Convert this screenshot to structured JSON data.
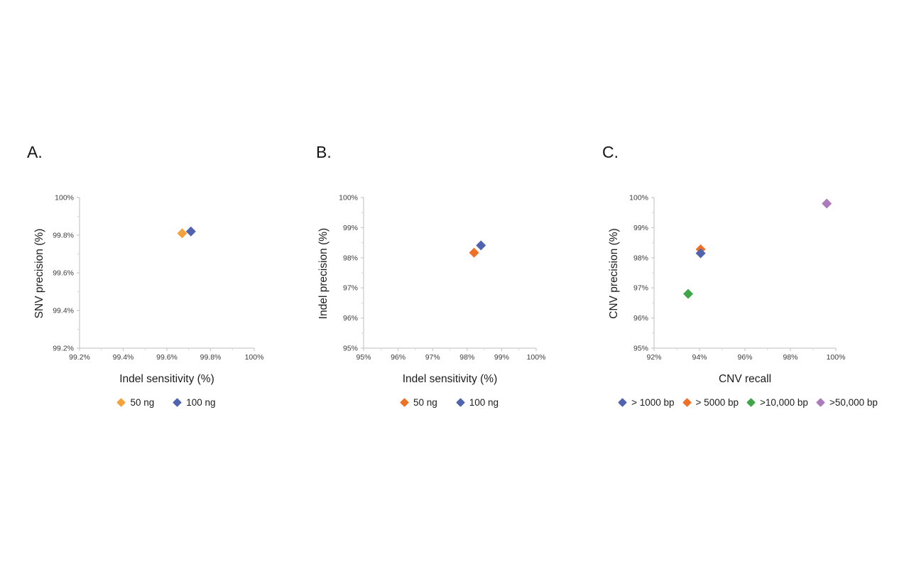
{
  "page": {
    "background": "#ffffff"
  },
  "chart_data": [
    {
      "type": "scatter",
      "panel_label": "A.",
      "xlabel": "Indel sensitivity (%)",
      "ylabel": "SNV precision (%)",
      "xlim": [
        99.2,
        100
      ],
      "xtick_step": 0.2,
      "xminor_step": 0.1,
      "ylim": [
        99.2,
        100
      ],
      "ytick_step": 0.2,
      "yminor_step": 0.1,
      "xtick_labels": [
        "99.2%",
        "99.4%",
        "99.6%",
        "99.8%",
        "100%"
      ],
      "ytick_labels": [
        "99.2%",
        "99.4%",
        "99.6%",
        "99.8%",
        "100%"
      ],
      "grid": false,
      "legend_position": "bottom",
      "draw_order": [
        0,
        1
      ],
      "series": [
        {
          "name": "50 ng",
          "color": "#F5A13C",
          "points": [
            [
              99.67,
              99.81
            ]
          ]
        },
        {
          "name": "100 ng",
          "color": "#4F63AE",
          "points": [
            [
              99.71,
              99.82
            ]
          ]
        }
      ]
    },
    {
      "type": "scatter",
      "panel_label": "B.",
      "xlabel": "Indel sensitivity (%)",
      "ylabel": "Indel precision (%)",
      "xlim": [
        95,
        100
      ],
      "xtick_step": 1,
      "xminor_step": 0.5,
      "ylim": [
        95,
        100
      ],
      "ytick_step": 1,
      "yminor_step": 0.5,
      "xtick_labels": [
        "95%",
        "96%",
        "97%",
        "98%",
        "99%",
        "100%"
      ],
      "ytick_labels": [
        "95%",
        "96%",
        "97%",
        "98%",
        "99%",
        "100%"
      ],
      "grid": false,
      "legend_position": "bottom",
      "draw_order": [
        0,
        1
      ],
      "series": [
        {
          "name": "50 ng",
          "color": "#EE7125",
          "points": [
            [
              98.2,
              98.17
            ]
          ]
        },
        {
          "name": "100 ng",
          "color": "#4F63AE",
          "points": [
            [
              98.4,
              98.41
            ]
          ]
        }
      ]
    },
    {
      "type": "scatter",
      "panel_label": "C.",
      "xlabel": "CNV recall",
      "ylabel": "CNV precision (%)",
      "xlim": [
        92,
        100
      ],
      "xtick_step": 2,
      "xminor_step": 1,
      "ylim": [
        95,
        100
      ],
      "ytick_step": 1,
      "yminor_step": 0.5,
      "xtick_labels": [
        "92%",
        "94%",
        "96%",
        "98%",
        "100%"
      ],
      "ytick_labels": [
        "95%",
        "96%",
        "97%",
        "98%",
        "99%",
        "100%"
      ],
      "grid": false,
      "legend_position": "bottom",
      "draw_order": [
        1,
        0,
        2,
        3
      ],
      "series": [
        {
          "name": "> 1000 bp",
          "color": "#4F63AE",
          "points": [
            [
              94.05,
              98.15
            ]
          ]
        },
        {
          "name": "> 5000 bp",
          "color": "#EE7125",
          "points": [
            [
              94.05,
              98.28
            ]
          ]
        },
        {
          "name": ">10,000 bp",
          "color": "#3EA649",
          "points": [
            [
              93.5,
              96.8
            ]
          ]
        },
        {
          "name": ">50,000 bp",
          "color": "#AC7BBB",
          "points": [
            [
              99.6,
              99.8
            ]
          ]
        }
      ]
    }
  ],
  "style": {
    "axis_color": "#c9c9c9",
    "minor_tick_color": "#d6d6d6",
    "tick_label_color": "#3c3c3c"
  }
}
